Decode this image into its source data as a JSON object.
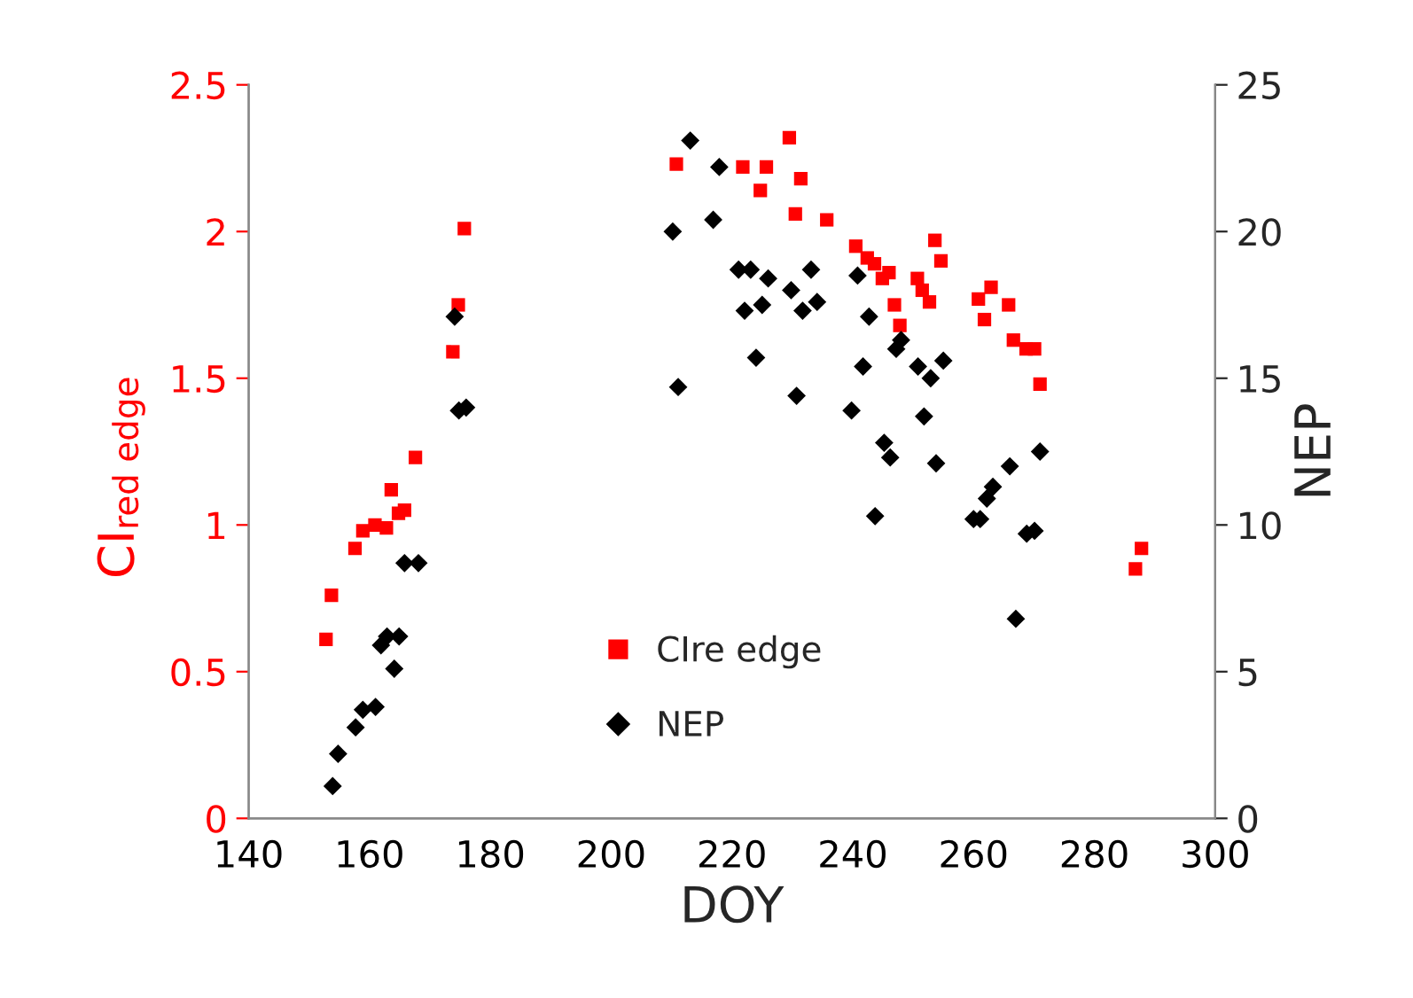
{
  "chart_data": {
    "type": "scatter",
    "xlabel": "DOY",
    "ylabel": "CI$_{red edge}$",
    "y2label": "NEP",
    "xlim": [
      140,
      300
    ],
    "xticks": [
      140,
      160,
      180,
      200,
      220,
      240,
      260,
      280,
      300
    ],
    "ylim": [
      0,
      2.5
    ],
    "yticks": [
      0,
      0.5,
      1,
      1.5,
      2,
      2.5
    ],
    "y2lim": [
      0,
      25
    ],
    "y2ticks": [
      0,
      5,
      10,
      15,
      20,
      25
    ],
    "legend": "bottom",
    "grid": false,
    "series": [
      {
        "name": "CIre edge",
        "color": "#ff0000",
        "marker": "square",
        "axis": "y",
        "x": [
          152.8,
          153.7,
          157.6,
          158.9,
          160.9,
          162.8,
          163.6,
          164.8,
          165.8,
          167.6,
          173.8,
          174.7,
          175.7,
          210.8,
          221.8,
          224.7,
          225.7,
          229.5,
          230.5,
          231.4,
          235.7,
          240.5,
          242.4,
          243.6,
          244.9,
          246.0,
          246.9,
          247.8,
          250.7,
          251.5,
          252.7,
          253.6,
          254.6,
          260.8,
          261.8,
          262.9,
          265.8,
          266.6,
          268.7,
          270.1,
          271.0,
          286.8,
          287.8
        ],
        "values": [
          0.61,
          0.76,
          0.92,
          0.98,
          1.0,
          0.99,
          1.12,
          1.04,
          1.05,
          1.23,
          1.59,
          1.75,
          2.01,
          2.23,
          2.22,
          2.14,
          2.22,
          2.32,
          2.06,
          2.18,
          2.04,
          1.95,
          1.91,
          1.89,
          1.84,
          1.86,
          1.75,
          1.68,
          1.84,
          1.8,
          1.76,
          1.97,
          1.9,
          1.77,
          1.7,
          1.81,
          1.75,
          1.63,
          1.6,
          1.6,
          1.48,
          0.85,
          0.92
        ]
      },
      {
        "name": "NEP",
        "color": "#000000",
        "marker": "diamond",
        "axis": "y2",
        "x": [
          153.9,
          154.8,
          157.7,
          158.9,
          161.0,
          161.9,
          162.9,
          164.9,
          164.1,
          165.8,
          168.1,
          174.1,
          174.8,
          176.0,
          210.2,
          211.1,
          213.1,
          216.9,
          217.9,
          221.1,
          222.1,
          223.1,
          224.0,
          225.0,
          226.0,
          229.8,
          230.7,
          231.7,
          233.1,
          234.1,
          239.8,
          240.8,
          241.7,
          242.7,
          243.7,
          245.2,
          246.2,
          247.2,
          248.0,
          250.8,
          251.8,
          252.9,
          253.8,
          255.0,
          260.0,
          261.1,
          262.2,
          263.2,
          266.0,
          267.0,
          268.8,
          270.1,
          271.0
        ],
        "values": [
          1.1,
          2.2,
          3.1,
          3.7,
          3.8,
          5.9,
          6.2,
          6.2,
          5.1,
          8.7,
          8.7,
          17.1,
          13.9,
          14.0,
          20.0,
          14.7,
          23.1,
          20.4,
          22.2,
          18.7,
          17.3,
          18.7,
          15.7,
          17.5,
          18.4,
          18.0,
          14.4,
          17.3,
          18.7,
          17.6,
          13.9,
          18.5,
          15.4,
          17.1,
          10.3,
          12.8,
          12.3,
          16.0,
          16.3,
          15.4,
          13.7,
          15.0,
          12.1,
          15.6,
          10.2,
          10.2,
          10.9,
          11.3,
          12.0,
          6.8,
          9.7,
          9.8,
          12.5
        ]
      }
    ]
  }
}
